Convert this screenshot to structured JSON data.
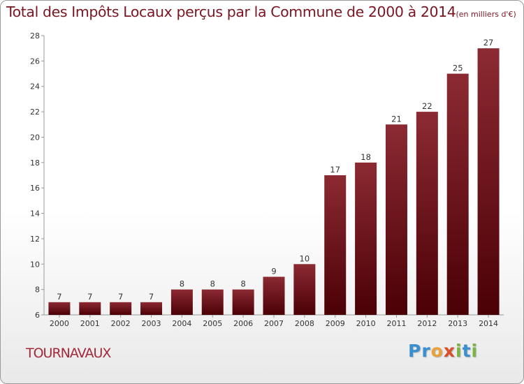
{
  "chart_data": {
    "type": "bar",
    "title": "Total des Impôts Locaux perçus par la Commune de 2000 à 2014",
    "unit_note": "(en milliers d'€)",
    "categories": [
      "2000",
      "2001",
      "2002",
      "2003",
      "2004",
      "2005",
      "2006",
      "2007",
      "2008",
      "2009",
      "2010",
      "2011",
      "2012",
      "2013",
      "2014"
    ],
    "values": [
      7,
      7,
      7,
      7,
      8,
      8,
      8,
      9,
      10,
      17,
      18,
      21,
      22,
      25,
      27
    ],
    "ylim": [
      6,
      28
    ],
    "yticks": [
      6,
      8,
      10,
      12,
      14,
      16,
      18,
      20,
      22,
      24,
      26,
      28
    ],
    "xlabel": "",
    "ylabel": "",
    "grid": false,
    "legend": "none"
  },
  "commune": "TOURNAVAUX",
  "logo": {
    "letters": [
      {
        "char": "P",
        "color": "#3a8fd0"
      },
      {
        "char": "r",
        "color": "#3a8fd0"
      },
      {
        "char": "o",
        "color": "#e9a23b"
      },
      {
        "char": "x",
        "color": "#d94f2a"
      },
      {
        "char": "i",
        "color": "#7cb342"
      },
      {
        "char": "t",
        "color": "#3a8fd0"
      },
      {
        "char": "i",
        "color": "#7cb342"
      }
    ]
  },
  "colors": {
    "bar_light": "#8c2a33",
    "bar_dark": "#4a0005",
    "title": "#7a1622",
    "commune": "#a3283a"
  }
}
